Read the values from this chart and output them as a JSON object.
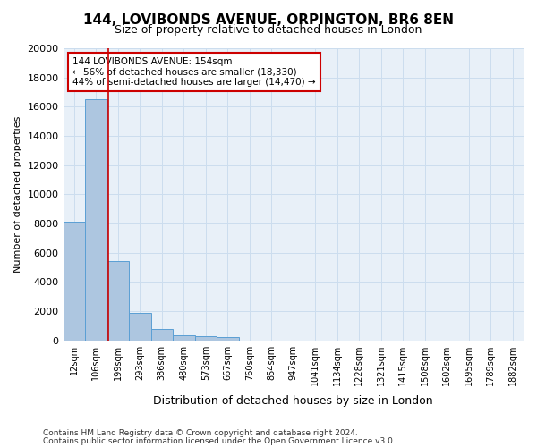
{
  "title": "144, LOVIBONDS AVENUE, ORPINGTON, BR6 8EN",
  "subtitle": "Size of property relative to detached houses in London",
  "xlabel": "Distribution of detached houses by size in London",
  "ylabel": "Number of detached properties",
  "bin_labels": [
    "12sqm",
    "106sqm",
    "199sqm",
    "293sqm",
    "386sqm",
    "480sqm",
    "573sqm",
    "667sqm",
    "760sqm",
    "854sqm",
    "947sqm",
    "1041sqm",
    "1134sqm",
    "1228sqm",
    "1321sqm",
    "1415sqm",
    "1508sqm",
    "1602sqm",
    "1695sqm",
    "1789sqm",
    "1882sqm"
  ],
  "bar_heights": [
    8100,
    16500,
    5400,
    1850,
    750,
    350,
    250,
    200,
    0,
    0,
    0,
    0,
    0,
    0,
    0,
    0,
    0,
    0,
    0,
    0,
    0
  ],
  "bar_color": "#adc6e0",
  "bar_edge_color": "#5a9fd4",
  "vline_x": 1.55,
  "vline_color": "#cc0000",
  "ylim": [
    0,
    20000
  ],
  "yticks": [
    0,
    2000,
    4000,
    6000,
    8000,
    10000,
    12000,
    14000,
    16000,
    18000,
    20000
  ],
  "annotation_title": "144 LOVIBONDS AVENUE: 154sqm",
  "annotation_line1": "← 56% of detached houses are smaller (18,330)",
  "annotation_line2": "44% of semi-detached houses are larger (14,470) →",
  "annotation_box_color": "#ffffff",
  "annotation_box_edge": "#cc0000",
  "grid_color": "#ccddee",
  "background_color": "#e8f0f8",
  "footer_line1": "Contains HM Land Registry data © Crown copyright and database right 2024.",
  "footer_line2": "Contains public sector information licensed under the Open Government Licence v3.0."
}
